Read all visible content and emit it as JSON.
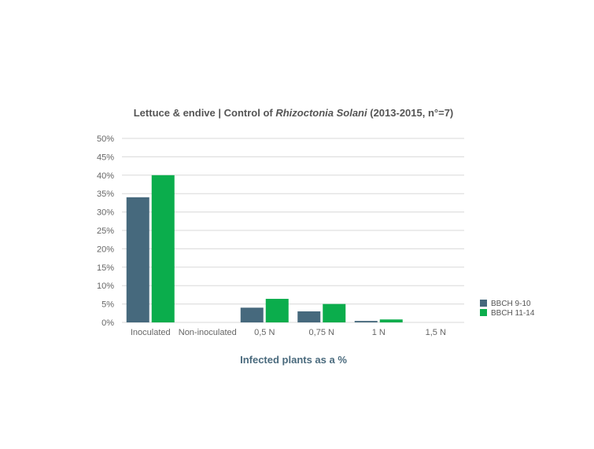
{
  "chart_data": {
    "type": "bar",
    "title": {
      "prefix": "Lettuce & endive | Control of ",
      "italic": "Rhizoctonia Solani",
      "suffix": " (2013-2015, n°=7)"
    },
    "xlabel": "Infected plants as a %",
    "ylabel": "",
    "categories": [
      "Inoculated",
      "Non-inoculated",
      "0,5 N",
      "0,75 N",
      "1 N",
      "1,5 N"
    ],
    "series": [
      {
        "name": "BBCH 9-10",
        "color": "#46697d",
        "values": [
          34,
          0,
          4,
          3,
          0.4,
          0
        ]
      },
      {
        "name": "BBCH 11-14",
        "color": "#0bad4c",
        "values": [
          40,
          0,
          6.4,
          5,
          0.8,
          0
        ]
      }
    ],
    "ylim": [
      0,
      50
    ],
    "yticks": [
      "0%",
      "5%",
      "10%",
      "15%",
      "20%",
      "25%",
      "30%",
      "35%",
      "40%",
      "45%",
      "50%"
    ],
    "grid": true,
    "legend_position": "right"
  }
}
